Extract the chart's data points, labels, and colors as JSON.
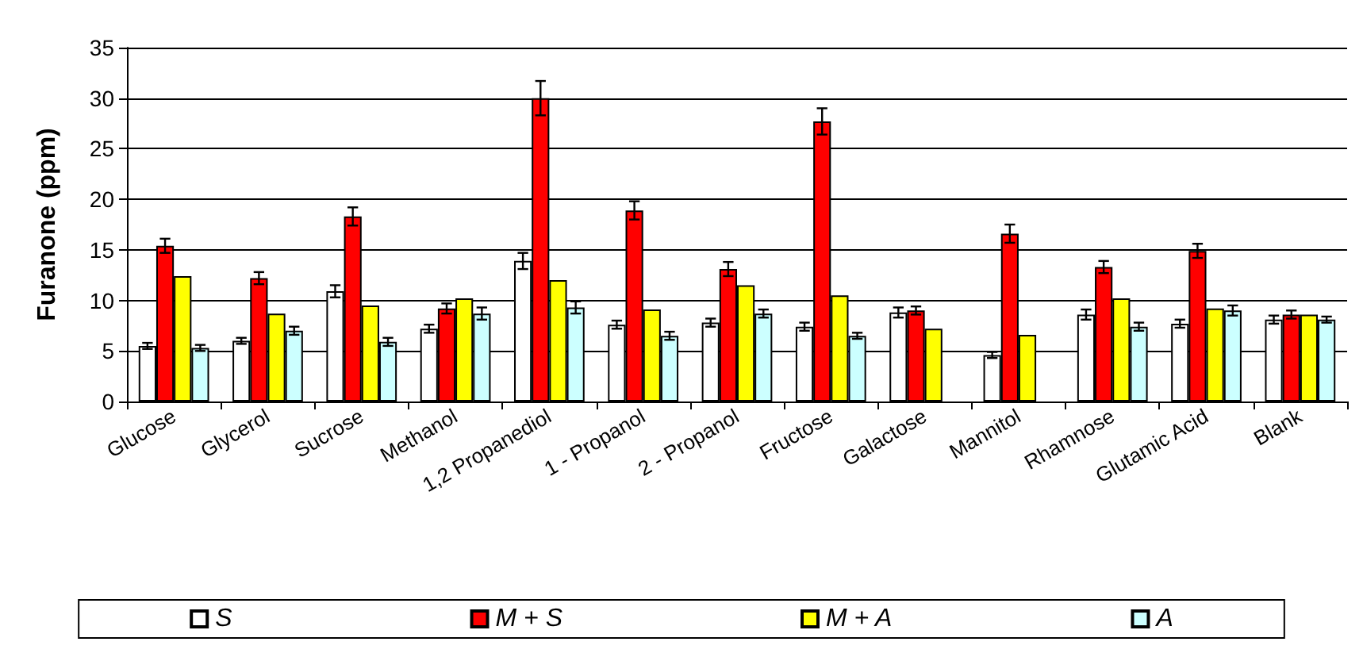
{
  "chart_data": {
    "type": "bar",
    "ylabel": "Furanone (ppm)",
    "categories": [
      "Glucose",
      "Glycerol",
      "Sucrose",
      "Methanol",
      "1,2 Propanediol",
      "1 - Propanol",
      "2 - Propanol",
      "Fructose",
      "Galactose",
      "Mannitol",
      "Rhamnose",
      "Glutamic Acid",
      "Blank"
    ],
    "series": [
      {
        "name": "S",
        "color": "#ffffff",
        "values": [
          5.5,
          6.0,
          10.9,
          7.2,
          13.9,
          7.6,
          7.8,
          7.4,
          8.8,
          4.6,
          8.6,
          7.7,
          8.1
        ],
        "errors": [
          0.3,
          0.3,
          0.6,
          0.4,
          0.8,
          0.4,
          0.4,
          0.4,
          0.5,
          0.3,
          0.5,
          0.4,
          0.4
        ]
      },
      {
        "name": "M + S",
        "color": "#ff0000",
        "values": [
          15.4,
          12.2,
          18.3,
          9.2,
          30.0,
          18.9,
          13.1,
          27.7,
          9.0,
          16.6,
          13.3,
          14.9,
          8.6
        ],
        "errors": [
          0.7,
          0.6,
          0.9,
          0.5,
          1.7,
          0.9,
          0.7,
          1.3,
          0.4,
          0.9,
          0.6,
          0.7,
          0.4
        ]
      },
      {
        "name": "M + A",
        "color": "#ffff00",
        "values": [
          12.4,
          8.7,
          9.5,
          10.2,
          12.0,
          9.1,
          11.5,
          10.5,
          7.2,
          6.6,
          10.2,
          9.2,
          8.6
        ]
      },
      {
        "name": "A",
        "color": "#ccffff",
        "values": [
          5.3,
          7.0,
          5.9,
          8.7,
          9.3,
          6.5,
          8.7,
          6.5,
          null,
          null,
          7.4,
          9.0,
          8.1
        ],
        "errors": [
          0.3,
          0.4,
          0.4,
          0.6,
          0.6,
          0.4,
          0.4,
          0.3,
          null,
          null,
          0.4,
          0.5,
          0.3
        ]
      }
    ],
    "ylim": [
      0,
      35
    ],
    "yticks": [
      0,
      5,
      10,
      15,
      20,
      25,
      30,
      35
    ],
    "grid": "y",
    "legend": "bottom"
  }
}
